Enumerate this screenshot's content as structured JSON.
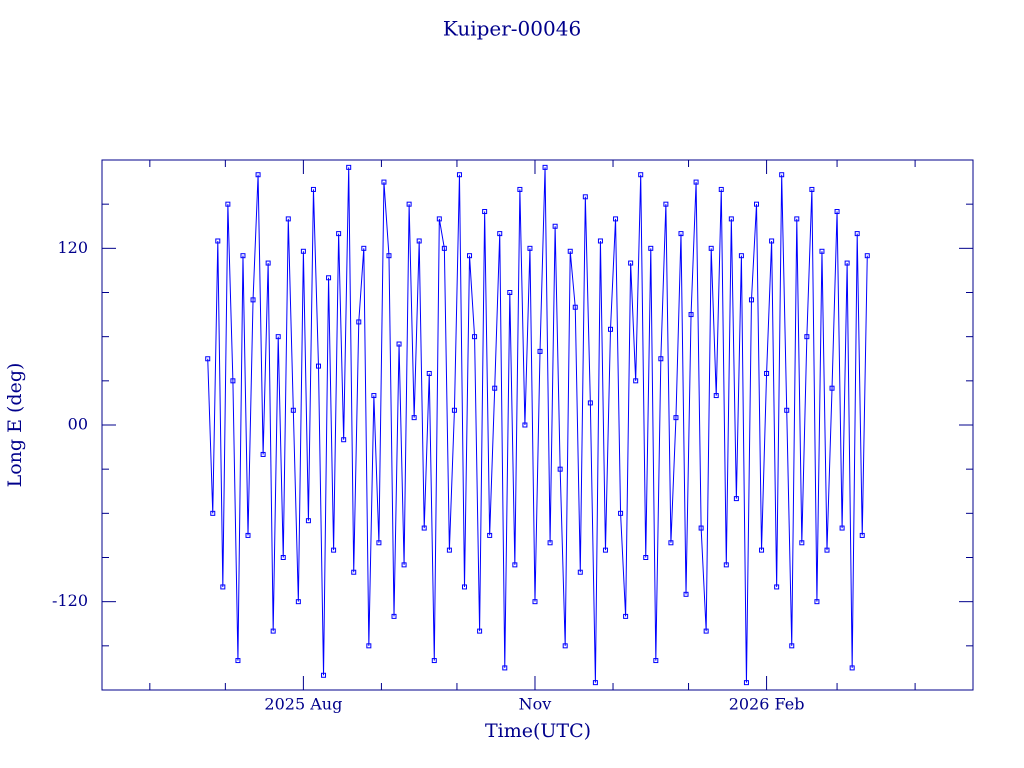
{
  "chart_data": {
    "type": "line",
    "title": "Kuiper-00046",
    "x_label": "Time(UTC)",
    "y_label": "Long E (deg)",
    "color": "#0000ff",
    "markers": true,
    "xlim": [
      -80,
      266
    ],
    "xticks": [
      {
        "value": 0,
        "label": "2025 Aug"
      },
      {
        "value": 92,
        "label": "Nov"
      },
      {
        "value": 184,
        "label": "2026 Feb"
      }
    ],
    "xminorticks": [
      -61,
      -31,
      31,
      61,
      123,
      153,
      212,
      243
    ],
    "ylim": [
      -180,
      180
    ],
    "yticks": [
      -120,
      {
        "value": 0,
        "label": "00"
      },
      120
    ],
    "yminorticks": [
      -150,
      -90,
      -60,
      -30,
      30,
      60,
      90,
      150
    ],
    "x": [
      -38,
      -36,
      -34,
      -32,
      -30,
      -28,
      -26,
      -24,
      -22,
      -20,
      -18,
      -16,
      -14,
      -12,
      -10,
      -8,
      -6,
      -4,
      -2,
      0,
      2,
      4,
      6,
      8,
      10,
      12,
      14,
      16,
      18,
      20,
      22,
      24,
      26,
      28,
      30,
      32,
      34,
      36,
      38,
      40,
      42,
      44,
      46,
      48,
      50,
      52,
      54,
      56,
      58,
      60,
      62,
      64,
      66,
      68,
      70,
      72,
      74,
      76,
      78,
      80,
      82,
      84,
      86,
      88,
      90,
      92,
      94,
      96,
      98,
      100,
      102,
      104,
      106,
      108,
      110,
      112,
      114,
      116,
      118,
      120,
      122,
      124,
      126,
      128,
      130,
      132,
      134,
      136,
      138,
      140,
      142,
      144,
      146,
      148,
      150,
      152,
      154,
      156,
      158,
      160,
      162,
      164,
      166,
      168,
      170,
      172,
      174,
      176,
      178,
      180,
      182,
      184,
      186,
      188,
      190,
      192,
      194,
      196,
      198,
      200,
      202,
      204,
      206,
      208,
      210,
      212,
      214,
      216,
      218,
      220,
      222,
      224
    ],
    "values": [
      45,
      -60,
      125,
      -110,
      150,
      30,
      -160,
      115,
      -75,
      85,
      170,
      -20,
      110,
      -140,
      60,
      -90,
      140,
      10,
      -120,
      118,
      -65,
      160,
      40,
      -170,
      100,
      -85,
      130,
      -10,
      175,
      -100,
      70,
      120,
      -150,
      20,
      -80,
      165,
      115,
      -130,
      55,
      -95,
      150,
      5,
      125,
      -70,
      35,
      -160,
      140,
      120,
      -85,
      10,
      170,
      -110,
      115,
      60,
      -140,
      145,
      -75,
      25,
      130,
      -165,
      90,
      -95,
      160,
      0,
      120,
      -120,
      50,
      175,
      -80,
      135,
      -30,
      -150,
      118,
      80,
      -100,
      155,
      15,
      -175,
      125,
      -85,
      65,
      140,
      -60,
      -130,
      110,
      30,
      170,
      -90,
      120,
      -160,
      45,
      150,
      -80,
      5,
      130,
      -115,
      75,
      165,
      -70,
      -140,
      120,
      20,
      160,
      -95,
      140,
      -50,
      115,
      -175,
      85,
      150,
      -85,
      35,
      125,
      -110,
      170,
      10,
      -150,
      140,
      -80,
      60,
      160,
      -120,
      118,
      -85,
      25,
      145,
      -70,
      110,
      -165,
      130,
      -75,
      115
    ]
  }
}
